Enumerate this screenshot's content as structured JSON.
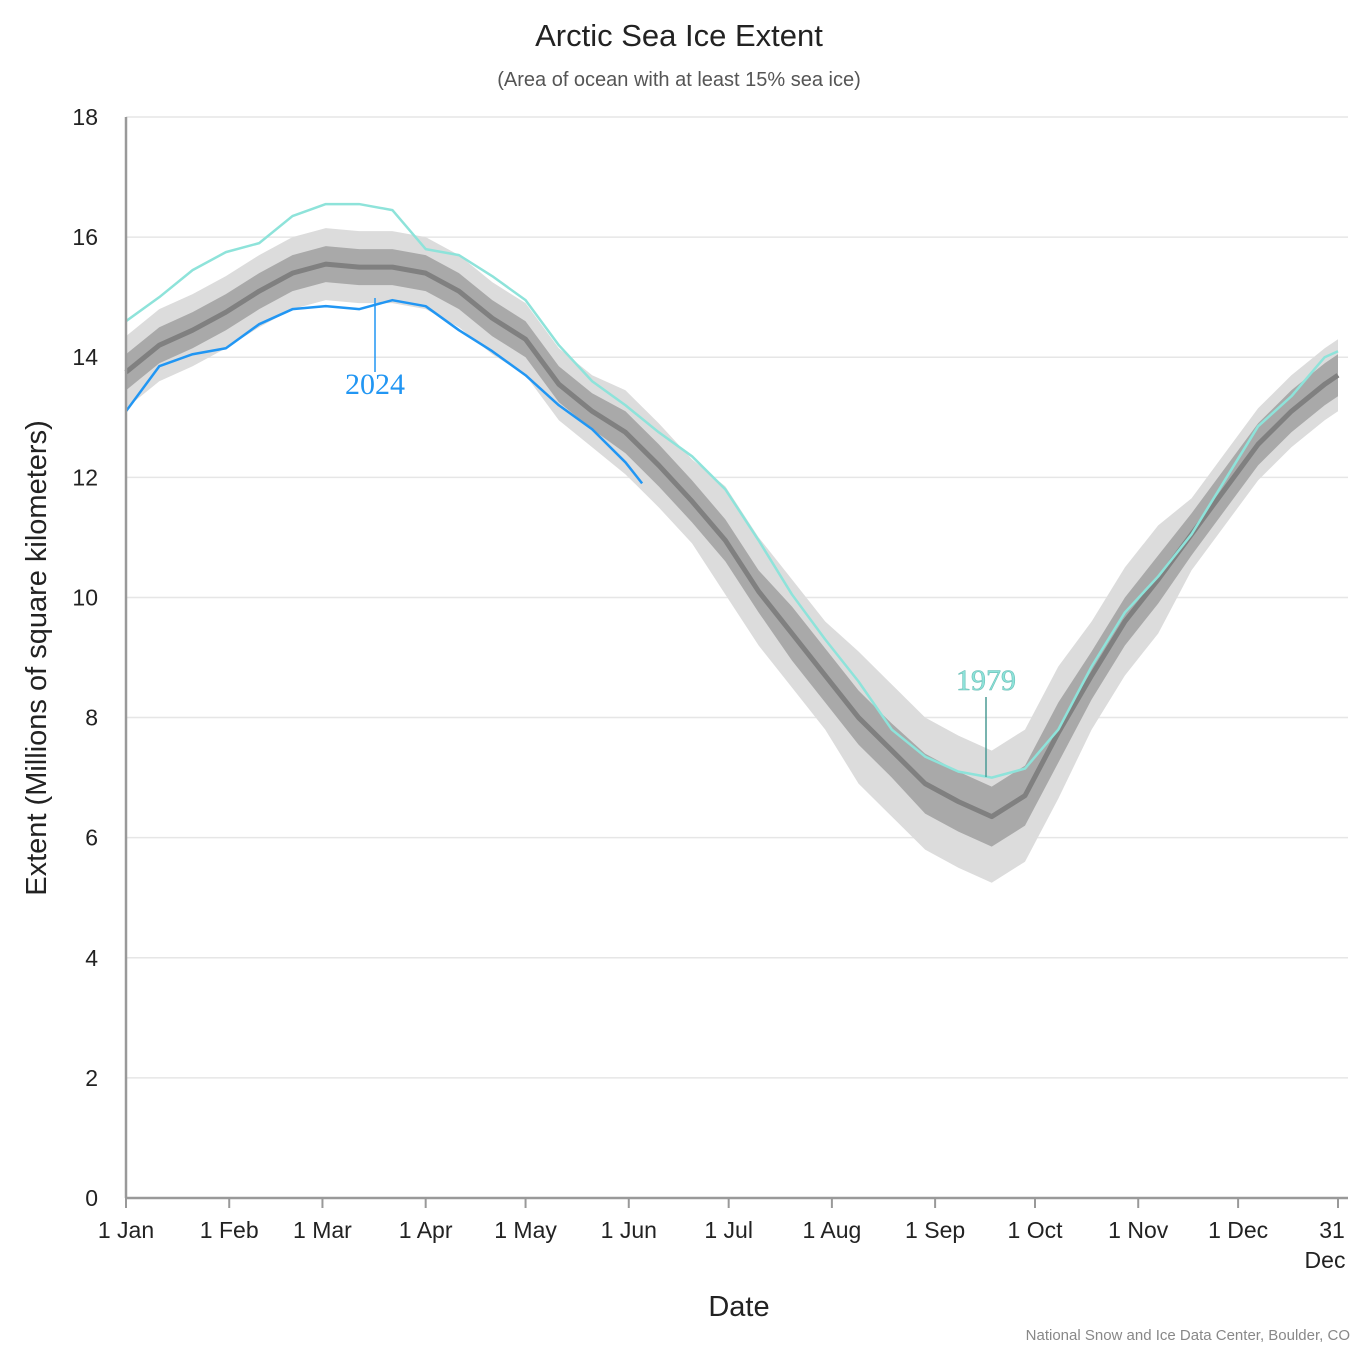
{
  "chart_data": {
    "type": "line",
    "title": "Arctic Sea Ice Extent",
    "subtitle": "(Area of ocean with at least 15% sea ice)",
    "x_label": "Date",
    "y_label": "Extent (Millions of square kilometers)",
    "credit": "National Snow and Ice Data Center, Boulder, CO",
    "xlim": [
      1,
      365
    ],
    "ylim": [
      0,
      18
    ],
    "yticks": [
      0,
      2,
      4,
      6,
      8,
      10,
      12,
      14,
      16,
      18
    ],
    "xticks": [
      {
        "value": 1,
        "label": "1 Jan"
      },
      {
        "value": 32,
        "label": "1 Feb"
      },
      {
        "value": 60,
        "label": "1 Mar"
      },
      {
        "value": 91,
        "label": "1 Apr"
      },
      {
        "value": 121,
        "label": "1 May"
      },
      {
        "value": 152,
        "label": "1 Jun"
      },
      {
        "value": 182,
        "label": "1 Jul"
      },
      {
        "value": 213,
        "label": "1 Aug"
      },
      {
        "value": 244,
        "label": "1 Sep"
      },
      {
        "value": 274,
        "label": "1 Oct"
      },
      {
        "value": 305,
        "label": "1 Nov"
      },
      {
        "value": 335,
        "label": "1 Dec"
      },
      {
        "value": 365,
        "label": "31 Dec"
      }
    ],
    "grid": true,
    "band_x": [
      1,
      11,
      21,
      31,
      41,
      51,
      61,
      71,
      81,
      91,
      101,
      111,
      121,
      131,
      141,
      151,
      161,
      171,
      181,
      191,
      201,
      211,
      221,
      231,
      241,
      251,
      261,
      271,
      281,
      291,
      301,
      311,
      321,
      331,
      341,
      351,
      361,
      365
    ],
    "bands": [
      {
        "color": "#dcdcdc",
        "low": [
          13.15,
          13.6,
          13.85,
          14.15,
          14.5,
          14.8,
          14.95,
          14.9,
          14.9,
          14.8,
          14.5,
          14.05,
          13.7,
          12.95,
          12.5,
          12.05,
          11.5,
          10.9,
          10.05,
          9.2,
          8.5,
          7.8,
          6.9,
          6.35,
          5.8,
          5.5,
          5.25,
          5.6,
          6.65,
          7.8,
          8.7,
          9.4,
          10.45,
          11.2,
          11.95,
          12.5,
          12.95,
          13.1
        ],
        "high": [
          14.35,
          14.8,
          15.05,
          15.35,
          15.7,
          16.0,
          16.15,
          16.1,
          16.1,
          16.0,
          15.7,
          15.25,
          14.9,
          14.15,
          13.7,
          13.45,
          12.9,
          12.3,
          11.85,
          11.0,
          10.3,
          9.6,
          9.1,
          8.55,
          8.0,
          7.7,
          7.45,
          7.8,
          8.85,
          9.6,
          10.5,
          11.2,
          11.65,
          12.4,
          13.15,
          13.7,
          14.15,
          14.3
        ]
      },
      {
        "color": "#a9a9a9",
        "low": [
          13.45,
          13.9,
          14.15,
          14.45,
          14.8,
          15.1,
          15.25,
          15.2,
          15.2,
          15.1,
          14.8,
          14.35,
          14.0,
          13.25,
          12.8,
          12.4,
          11.85,
          11.25,
          10.6,
          9.75,
          8.95,
          8.25,
          7.55,
          7.0,
          6.4,
          6.1,
          5.85,
          6.2,
          7.25,
          8.3,
          9.2,
          9.9,
          10.7,
          11.45,
          12.2,
          12.75,
          13.2,
          13.35
        ],
        "high": [
          14.05,
          14.5,
          14.75,
          15.05,
          15.4,
          15.7,
          15.85,
          15.8,
          15.8,
          15.7,
          15.4,
          14.95,
          14.6,
          13.85,
          13.4,
          13.1,
          12.55,
          11.95,
          11.3,
          10.45,
          9.85,
          9.15,
          8.45,
          7.9,
          7.4,
          7.1,
          6.85,
          7.2,
          8.25,
          9.1,
          10.0,
          10.7,
          11.4,
          12.15,
          12.9,
          13.45,
          13.9,
          14.05
        ]
      }
    ],
    "series": [
      {
        "color": "#808080",
        "x": [
          1,
          11,
          21,
          31,
          41,
          51,
          61,
          71,
          81,
          91,
          101,
          111,
          121,
          131,
          141,
          151,
          161,
          171,
          181,
          191,
          201,
          211,
          221,
          231,
          241,
          251,
          261,
          271,
          281,
          291,
          301,
          311,
          321,
          331,
          341,
          351,
          361,
          365
        ],
        "values": [
          13.75,
          14.2,
          14.45,
          14.75,
          15.1,
          15.4,
          15.55,
          15.5,
          15.5,
          15.4,
          15.1,
          14.65,
          14.3,
          13.55,
          13.1,
          12.75,
          12.2,
          11.6,
          10.95,
          10.1,
          9.4,
          8.7,
          8.0,
          7.45,
          6.9,
          6.6,
          6.35,
          6.7,
          7.75,
          8.7,
          9.6,
          10.3,
          11.05,
          11.8,
          12.55,
          13.1,
          13.55,
          13.7
        ]
      },
      {
        "name": "1979",
        "color": "#8ee3da",
        "x": [
          1,
          11,
          21,
          31,
          41,
          51,
          61,
          71,
          81,
          91,
          101,
          111,
          121,
          131,
          141,
          151,
          161,
          171,
          181,
          191,
          201,
          211,
          221,
          231,
          241,
          251,
          261,
          271,
          281,
          291,
          301,
          311,
          321,
          331,
          341,
          351,
          361,
          365
        ],
        "values": [
          14.6,
          15.0,
          15.45,
          15.75,
          15.9,
          16.35,
          16.55,
          16.55,
          16.45,
          15.8,
          15.7,
          15.35,
          14.95,
          14.2,
          13.6,
          13.2,
          12.75,
          12.35,
          11.8,
          10.95,
          10.05,
          9.3,
          8.6,
          7.8,
          7.35,
          7.1,
          7.0,
          7.15,
          7.8,
          8.85,
          9.75,
          10.35,
          11.05,
          11.95,
          12.85,
          13.35,
          14.0,
          14.1
        ]
      },
      {
        "name": "2024",
        "color": "#2196f3",
        "x": [
          1,
          11,
          21,
          31,
          41,
          51,
          61,
          71,
          81,
          91,
          101,
          111,
          121,
          131,
          141,
          151,
          156
        ],
        "values": [
          13.1,
          13.85,
          14.05,
          14.15,
          14.55,
          14.8,
          14.85,
          14.8,
          14.95,
          14.85,
          14.45,
          14.1,
          13.7,
          13.2,
          12.8,
          12.25,
          11.9
        ]
      }
    ]
  }
}
